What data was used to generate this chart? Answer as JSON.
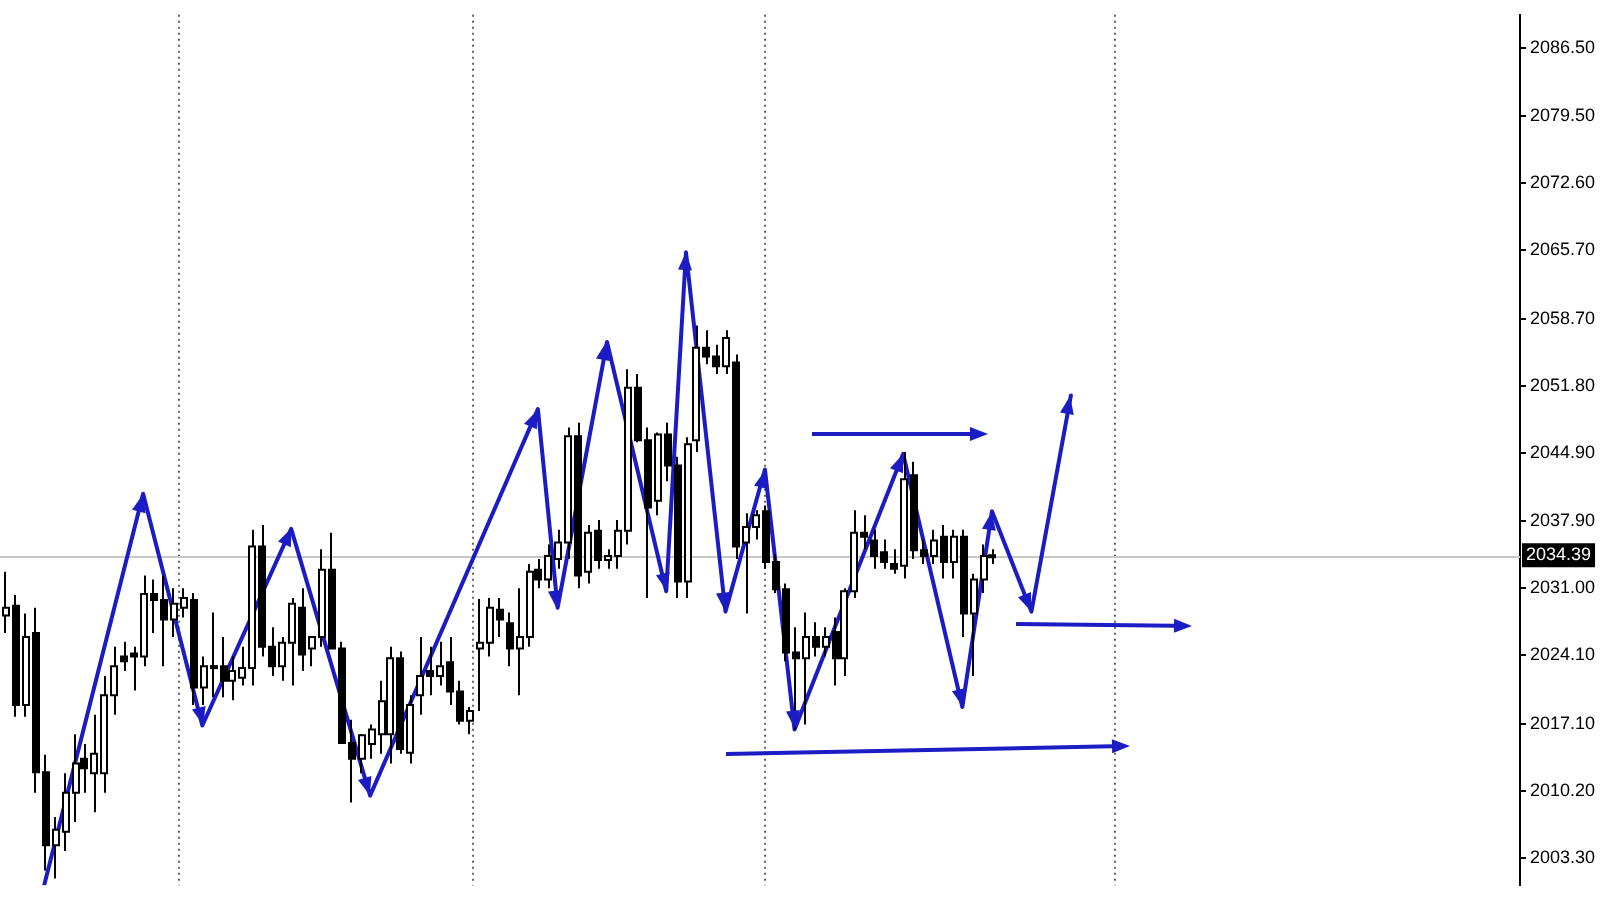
{
  "chart_data": {
    "type": "candlestick",
    "categories": [
      null,
      null,
      null,
      null,
      null,
      null,
      null,
      null,
      null,
      null,
      null,
      null,
      null,
      null,
      null,
      null,
      null,
      null,
      null,
      null,
      null,
      null,
      null,
      null,
      null,
      null,
      null,
      null,
      null,
      null,
      null,
      null,
      null,
      null,
      null,
      null,
      null,
      null,
      null,
      null,
      null,
      null,
      null,
      null,
      null,
      null,
      null,
      null,
      null,
      null,
      null,
      null,
      null,
      null,
      null,
      null,
      null,
      null,
      null,
      null,
      null,
      null,
      null,
      null,
      null,
      null,
      null,
      null,
      null,
      null,
      null,
      null,
      null,
      null,
      null,
      null,
      null,
      null,
      null,
      null,
      null,
      null,
      null,
      null,
      null,
      null,
      null,
      null,
      null,
      null,
      null,
      null,
      null,
      null,
      null,
      null,
      null,
      null,
      null,
      null,
      null,
      null,
      null,
      null,
      null,
      null,
      null,
      null,
      null,
      null,
      null,
      null,
      null,
      null,
      null,
      null,
      null,
      null,
      null,
      null,
      null,
      null,
      null,
      null,
      null,
      null,
      null,
      null,
      null,
      null,
      null,
      null,
      null,
      null,
      null,
      null,
      null,
      null,
      null,
      null,
      null,
      null,
      null,
      null,
      null,
      null,
      null,
      null,
      null,
      null,
      null,
      null,
      null,
      null
    ],
    "ohlc": [
      [
        2028.2,
        2032.7,
        2026.4,
        2029.0
      ],
      [
        2029.2,
        2030.3,
        2017.8,
        2019.0
      ],
      [
        2019.0,
        2028.4,
        2017.8,
        2026.0
      ],
      [
        2026.4,
        2029.0,
        2010.0,
        2012.1
      ],
      [
        2012.1,
        2013.9,
        2002.0,
        2004.6
      ],
      [
        2004.6,
        2007.5,
        2001.2,
        2006.2
      ],
      [
        2006.0,
        2012.0,
        2004.0,
        2010.0
      ],
      [
        2010.0,
        2016.0,
        2007.0,
        2013.0
      ],
      [
        2013.5,
        2015.0,
        2010.0,
        2012.5
      ],
      [
        2012.0,
        2018.0,
        2008.0,
        2014.0
      ],
      [
        2012.0,
        2022.0,
        2010.0,
        2020.0
      ],
      [
        2020.0,
        2025.0,
        2018.0,
        2023.0
      ],
      [
        2024.0,
        2025.5,
        2022.5,
        2023.5
      ],
      [
        2024.3,
        2025.0,
        2020.5,
        2024.0
      ],
      [
        2024.0,
        2032.3,
        2023.0,
        2030.4
      ],
      [
        2030.4,
        2031.9,
        2026.4,
        2029.8
      ],
      [
        2029.8,
        2032.3,
        2023.0,
        2027.8
      ],
      [
        2027.8,
        2031.0,
        2026.0,
        2029.4
      ],
      [
        2029.0,
        2031.0,
        2028.0,
        2030.0
      ],
      [
        2029.8,
        2030.5,
        2019.0,
        2020.8
      ],
      [
        2020.8,
        2024.0,
        2019.0,
        2023.0
      ],
      [
        2023.0,
        2028.5,
        2019.8,
        2022.8
      ],
      [
        2023.0,
        2026.0,
        2019.8,
        2021.5
      ],
      [
        2021.5,
        2024.0,
        2019.5,
        2022.5
      ],
      [
        2021.8,
        2025.0,
        2021.0,
        2022.8
      ],
      [
        2022.8,
        2037.0,
        2021.0,
        2035.3
      ],
      [
        2035.3,
        2037.5,
        2024.0,
        2025.0
      ],
      [
        2025.0,
        2027.0,
        2022.0,
        2023.0
      ],
      [
        2023.0,
        2026.0,
        2021.5,
        2025.4
      ],
      [
        2025.4,
        2030.0,
        2021.0,
        2029.4
      ],
      [
        2029.0,
        2031.0,
        2022.5,
        2024.2
      ],
      [
        2024.8,
        2026.0,
        2023.0,
        2026.0
      ],
      [
        2026.0,
        2035.0,
        2025.0,
        2032.9
      ],
      [
        2032.9,
        2036.7,
        2024.8,
        2024.8
      ],
      [
        2024.8,
        2025.5,
        2015.1,
        2015.1
      ],
      [
        2015.1,
        2017.5,
        2009.0,
        2013.5
      ],
      [
        2013.5,
        2016.0,
        2012.0,
        2015.9
      ],
      [
        2015.0,
        2017.0,
        2013.5,
        2016.5
      ],
      [
        2016.0,
        2021.5,
        2014.0,
        2019.4
      ],
      [
        2016.0,
        2025.0,
        2013.0,
        2023.8
      ],
      [
        2023.8,
        2024.5,
        2014.0,
        2014.5
      ],
      [
        2014.1,
        2020.0,
        2013.0,
        2019.0
      ],
      [
        2020.0,
        2026.0,
        2018.0,
        2022.0
      ],
      [
        2022.5,
        2025.0,
        2020.0,
        2022.0
      ],
      [
        2022.0,
        2025.5,
        2021.0,
        2023.0
      ],
      [
        2023.4,
        2026.0,
        2019.0,
        2020.4
      ],
      [
        2020.4,
        2021.5,
        2017.0,
        2017.4
      ],
      [
        2017.4,
        2018.8,
        2016.0,
        2018.4
      ],
      [
        2024.8,
        2029.9,
        2018.4,
        2025.4
      ],
      [
        2025.4,
        2030.0,
        2024.0,
        2029.0
      ],
      [
        2028.8,
        2030.0,
        2026.0,
        2027.8
      ],
      [
        2027.4,
        2028.5,
        2023.0,
        2024.8
      ],
      [
        2024.8,
        2031.0,
        2020.0,
        2026.0
      ],
      [
        2026.0,
        2033.5,
        2025.0,
        2032.7
      ],
      [
        2032.9,
        2034.0,
        2031.0,
        2031.9
      ],
      [
        2031.9,
        2035.5,
        2031.0,
        2034.3
      ],
      [
        2034.0,
        2037.0,
        2033.0,
        2035.7
      ],
      [
        2035.7,
        2047.5,
        2034.0,
        2046.6
      ],
      [
        2046.6,
        2048.0,
        2031.0,
        2032.3
      ],
      [
        2032.7,
        2037.5,
        2031.5,
        2036.7
      ],
      [
        2036.9,
        2038.0,
        2033.0,
        2033.9
      ],
      [
        2033.9,
        2035.0,
        2033.0,
        2034.3
      ],
      [
        2034.3,
        2038.0,
        2033.0,
        2036.9
      ],
      [
        2036.9,
        2053.5,
        2035.5,
        2051.6
      ],
      [
        2051.6,
        2053.0,
        2046.0,
        2046.2
      ],
      [
        2046.2,
        2047.5,
        2030.0,
        2039.3
      ],
      [
        2040.0,
        2047.0,
        2038.5,
        2046.8
      ],
      [
        2046.8,
        2048.0,
        2042.0,
        2043.6
      ],
      [
        2043.6,
        2044.5,
        2030.0,
        2031.7
      ],
      [
        2031.7,
        2046.5,
        2030.0,
        2045.8
      ],
      [
        2046.2,
        2058.0,
        2045.0,
        2055.7
      ],
      [
        2055.7,
        2057.5,
        2054.0,
        2054.8
      ],
      [
        2054.8,
        2056.0,
        2053.0,
        2053.8
      ],
      [
        2053.8,
        2057.5,
        2053.0,
        2056.7
      ],
      [
        2054.2,
        2055.0,
        2034.0,
        2035.3
      ],
      [
        2035.7,
        2038.7,
        2028.4,
        2037.3
      ],
      [
        2037.3,
        2039.0,
        2036.0,
        2038.5
      ],
      [
        2038.9,
        2039.5,
        2033.0,
        2033.7
      ],
      [
        2033.7,
        2034.5,
        2030.5,
        2030.9
      ],
      [
        2030.9,
        2031.5,
        2023.5,
        2024.4
      ],
      [
        2024.4,
        2027.0,
        2016.5,
        2023.8
      ],
      [
        2023.8,
        2028.5,
        2017.0,
        2026.0
      ],
      [
        2026.0,
        2027.5,
        2024.0,
        2025.0
      ],
      [
        2025.0,
        2027.0,
        2024.0,
        2026.0
      ],
      [
        2026.5,
        2028.0,
        2021.0,
        2023.8
      ],
      [
        2023.8,
        2031.0,
        2022.0,
        2030.7
      ],
      [
        2030.7,
        2039.0,
        2030.0,
        2036.7
      ],
      [
        2036.7,
        2038.5,
        2035.0,
        2036.3
      ],
      [
        2035.9,
        2037.0,
        2033.0,
        2034.3
      ],
      [
        2034.7,
        2036.0,
        2033.0,
        2033.7
      ],
      [
        2033.5,
        2035.0,
        2032.5,
        2033.0
      ],
      [
        2033.3,
        2045.0,
        2032.0,
        2042.2
      ],
      [
        2042.6,
        2044.0,
        2034.0,
        2034.9
      ],
      [
        2034.9,
        2036.0,
        2033.5,
        2034.3
      ],
      [
        2034.3,
        2037.0,
        2033.5,
        2035.9
      ],
      [
        2036.3,
        2037.5,
        2032.0,
        2033.7
      ],
      [
        2033.7,
        2037.0,
        2032.0,
        2036.3
      ],
      [
        2036.3,
        2037.0,
        2026.0,
        2028.4
      ],
      [
        2028.4,
        2032.5,
        2022.0,
        2031.9
      ],
      [
        2031.9,
        2035.5,
        2030.5,
        2034.3
      ],
      [
        2034.3,
        2035.0,
        2033.5,
        2034.39
      ],
      null,
      null,
      null,
      null,
      null,
      null,
      null,
      null,
      null,
      null,
      null,
      null,
      null,
      null,
      null,
      null,
      null,
      null,
      null,
      null,
      null,
      null,
      null,
      null,
      null,
      null,
      null,
      null,
      null,
      null,
      null,
      null,
      null,
      null,
      null,
      null,
      null,
      null,
      null,
      null,
      null,
      null,
      null,
      null,
      null,
      null,
      null,
      null,
      null,
      null,
      null,
      null,
      null
    ],
    "series": [
      {
        "type": "line",
        "color": "#1c1cc4",
        "values": [
          null,
          null,
          null,
          null,
          2000.6,
          null,
          null,
          null,
          null,
          null,
          null,
          null,
          null,
          null,
          2040.7,
          null,
          null,
          null,
          null,
          null,
          2016.9,
          null,
          null,
          null,
          null,
          null,
          null,
          null,
          null,
          2037.1,
          null,
          null,
          null,
          null,
          null,
          null,
          null,
          2009.7,
          null,
          null,
          null,
          null,
          null,
          null,
          null,
          null,
          null,
          null,
          null,
          null,
          null,
          null,
          null,
          null,
          2049.4,
          null,
          2029.0,
          null,
          null,
          null,
          null,
          2056.3,
          null,
          null,
          null,
          null,
          null,
          2030.7,
          null,
          2065.5,
          null,
          null,
          null,
          2028.6,
          null,
          null,
          null,
          2043.2,
          null,
          null,
          2016.5,
          null,
          null,
          null,
          null,
          null,
          null,
          null,
          null,
          null,
          null,
          2044.8,
          null,
          null,
          null,
          null,
          null,
          2018.8,
          null,
          null,
          2038.9,
          null,
          null,
          null,
          2028.6,
          null,
          null,
          null,
          2050.8,
          null,
          null,
          null,
          null,
          null,
          null,
          null,
          null,
          null,
          null,
          null,
          null,
          null,
          null,
          null,
          null,
          null,
          null,
          null,
          null,
          null,
          null,
          null,
          null,
          null,
          null,
          null,
          null,
          null,
          null,
          null,
          null,
          null,
          null,
          null,
          null,
          null,
          null,
          null,
          null,
          null,
          null,
          null,
          null,
          null
        ]
      }
    ],
    "ylim": [
      2000.5,
      2089.9
    ],
    "yticks": [
      {
        "value": 2003.3,
        "label": "2003.30"
      },
      {
        "value": 2010.2,
        "label": "2010.20"
      },
      {
        "value": 2017.1,
        "label": "2017.10"
      },
      {
        "value": 2024.1,
        "label": "2024.10"
      },
      {
        "value": 2031.0,
        "label": "2031.00"
      },
      {
        "value": 2037.9,
        "label": "2037.90"
      },
      {
        "value": 2044.9,
        "label": "2044.90"
      },
      {
        "value": 2051.8,
        "label": "2051.80"
      },
      {
        "value": 2058.7,
        "label": "2058.70"
      },
      {
        "value": 2065.7,
        "label": "2065.70"
      },
      {
        "value": 2072.6,
        "label": "2072.60"
      },
      {
        "value": 2079.5,
        "label": "2079.50"
      },
      {
        "value": 2086.5,
        "label": "2086.50"
      }
    ],
    "ref_lines": [
      {
        "axis": "y",
        "value": 2034.39,
        "label": "2034.39",
        "color": "#c8c8c8"
      }
    ],
    "tick_labels": "y",
    "grid": false,
    "legend": false,
    "marker": "none",
    "line_style": "solid"
  }
}
